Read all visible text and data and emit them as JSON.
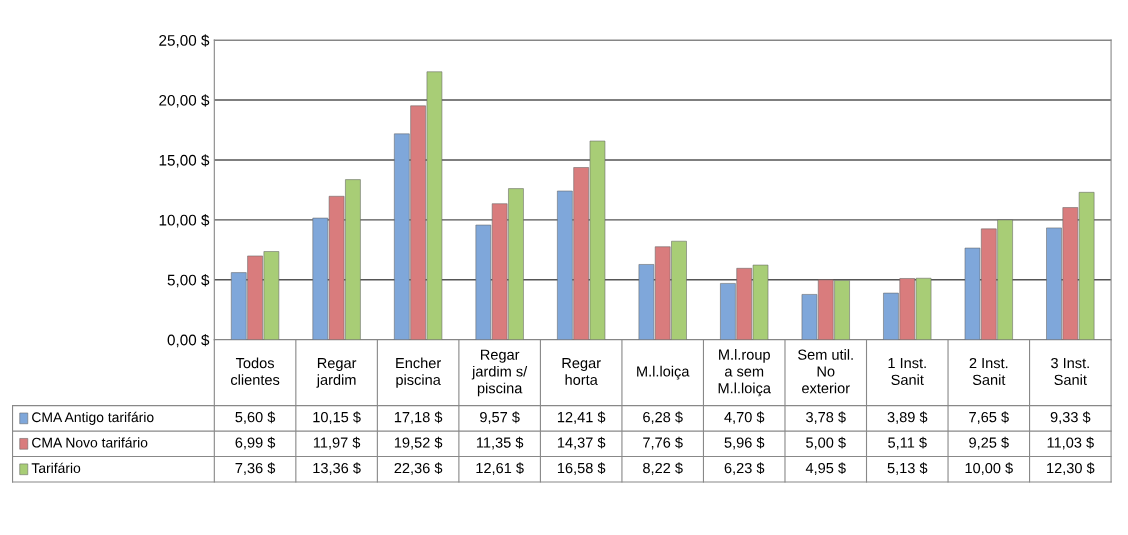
{
  "chart_data": {
    "type": "bar",
    "categories": [
      "Todos\nclientes",
      "Regar\njardim",
      "Encher\npiscina",
      "Regar\njardim s/\npiscina",
      "Regar\nhorta",
      "M.l.loiça",
      "M.l.roup\na sem\nM.l.loiça",
      "Sem util.\nNo\nexterior",
      "1 Inst.\nSanit",
      "2 Inst.\nSanit",
      "3 Inst.\nSanit"
    ],
    "series": [
      {
        "name": "CMA Antigo tarifário",
        "color": "#7fa7da",
        "values": [
          5.6,
          10.15,
          17.18,
          9.57,
          12.41,
          6.28,
          4.7,
          3.78,
          3.89,
          7.65,
          9.33
        ],
        "value_labels": [
          "5,60 $",
          "10,15 $",
          "17,18 $",
          "9,57 $",
          "12,41 $",
          "6,28 $",
          "4,70 $",
          "3,78 $",
          "3,89 $",
          "7,65 $",
          "9,33 $"
        ]
      },
      {
        "name": "CMA Novo tarifário",
        "color": "#d97c7d",
        "values": [
          6.99,
          11.97,
          19.52,
          11.35,
          14.37,
          7.76,
          5.96,
          5.0,
          5.11,
          9.25,
          11.03
        ],
        "value_labels": [
          "6,99 $",
          "11,97 $",
          "19,52 $",
          "11,35 $",
          "14,37 $",
          "7,76 $",
          "5,96 $",
          "5,00 $",
          "5,11 $",
          "9,25 $",
          "11,03 $"
        ]
      },
      {
        "name": "Tarifário",
        "color": "#a8cd76",
        "values": [
          7.36,
          13.36,
          22.36,
          12.61,
          16.58,
          8.22,
          6.23,
          4.95,
          5.13,
          10.0,
          12.3
        ],
        "value_labels": [
          "7,36 $",
          "13,36 $",
          "22,36 $",
          "12,61 $",
          "16,58 $",
          "8,22 $",
          "6,23 $",
          "4,95 $",
          "5,13 $",
          "10,00 $",
          "12,30 $"
        ]
      }
    ],
    "ylim": [
      0,
      25
    ],
    "yticks": [
      {
        "value": 0,
        "label": "0,00 $"
      },
      {
        "value": 5,
        "label": "5,00 $"
      },
      {
        "value": 10,
        "label": "10,00 $"
      },
      {
        "value": 15,
        "label": "15,00 $"
      },
      {
        "value": 20,
        "label": "20,00 $"
      },
      {
        "value": 25,
        "label": "25,00 $"
      }
    ],
    "grid": "y",
    "legend": "bottom"
  }
}
